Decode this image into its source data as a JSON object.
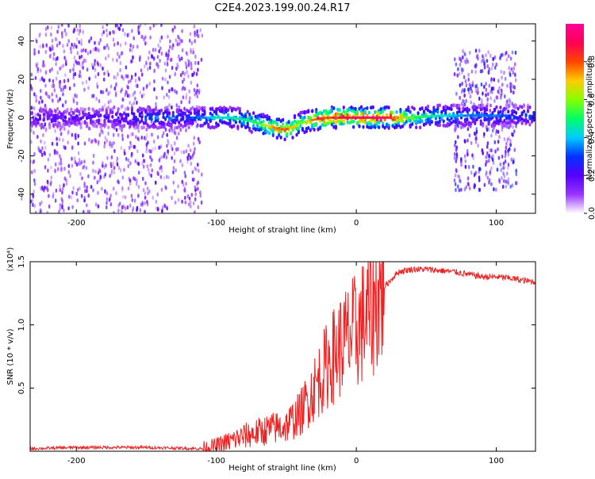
{
  "title": "C2E4.2023.199.00.24.R17",
  "colors": {
    "snr_line": "#ee2222",
    "frame": "#000000",
    "colormap": [
      "#ffffff",
      "#9933ff",
      "#5500ff",
      "#0033ff",
      "#00ccff",
      "#00ff66",
      "#88ff00",
      "#ffcc00",
      "#ff4400",
      "#ff0055",
      "#ff0099"
    ]
  },
  "chart_data": [
    {
      "type": "heatmap",
      "title": "",
      "xlabel": "Height of straight line (km)",
      "ylabel": "Frequency (Hz)",
      "xlim": [
        -233,
        128
      ],
      "ylim": [
        -50,
        49
      ],
      "xticks": [
        -200,
        -100,
        0,
        100
      ],
      "yticks": [
        -40,
        -20,
        0,
        20,
        40
      ],
      "colorbar": {
        "label": "Normalized spectral amplitude",
        "range": [
          0,
          1
        ],
        "ticks": [
          0.0,
          0.2,
          0.4,
          0.6,
          0.8
        ]
      },
      "ridge": {
        "x": [
          -200,
          -180,
          -160,
          -140,
          -120,
          -110,
          -100,
          -90,
          -80,
          -70,
          -60,
          -55,
          -50,
          -45,
          -40,
          -35,
          -30,
          -20,
          -10,
          0,
          10,
          20,
          40,
          60,
          70,
          80,
          100,
          110,
          128
        ],
        "freq": [
          0,
          0,
          0,
          0,
          0,
          0,
          0,
          0,
          -1,
          -3,
          -5,
          -6,
          -6,
          -5,
          -3,
          -2,
          -1,
          0,
          0,
          0,
          0,
          0,
          0,
          1,
          1,
          1,
          1,
          1,
          1
        ],
        "amplitude": [
          0.2,
          0.2,
          0.3,
          0.35,
          0.3,
          0.35,
          0.45,
          0.45,
          0.5,
          0.55,
          0.75,
          0.8,
          0.8,
          0.7,
          0.6,
          0.65,
          0.8,
          0.85,
          0.9,
          0.9,
          0.95,
          0.95,
          0.55,
          0.45,
          0.4,
          0.35,
          0.35,
          0.3,
          0.3
        ]
      },
      "noise_regions": [
        {
          "x_range": [
            -233,
            -110
          ],
          "freq_range": [
            -50,
            49
          ],
          "amplitude": 0.15
        },
        {
          "x_range": [
            70,
            115
          ],
          "freq_range": [
            -38,
            35
          ],
          "amplitude": 0.2
        }
      ]
    },
    {
      "type": "line",
      "title": "",
      "xlabel": "Height of straight line (km)",
      "ylabel": "SNR (10 * v/v)",
      "y_multiplier": "(x10⁴)",
      "xlim": [
        -233,
        128
      ],
      "ylim": [
        0,
        1.5
      ],
      "xticks": [
        -200,
        -100,
        0,
        100
      ],
      "yticks": [
        0.5,
        1.0,
        1.5
      ],
      "x": [
        -233,
        -200,
        -150,
        -110,
        -100,
        -90,
        -80,
        -70,
        -60,
        -50,
        -40,
        -30,
        -20,
        -10,
        0,
        10,
        20,
        30,
        40,
        50,
        60,
        70,
        80,
        90,
        100,
        110,
        120,
        128
      ],
      "y": [
        0.02,
        0.03,
        0.03,
        0.02,
        0.04,
        0.08,
        0.12,
        0.15,
        0.18,
        0.2,
        0.3,
        0.5,
        0.7,
        0.85,
        0.95,
        1.1,
        1.3,
        1.42,
        1.44,
        1.44,
        1.43,
        1.42,
        1.4,
        1.38,
        1.38,
        1.37,
        1.35,
        1.34
      ]
    }
  ]
}
